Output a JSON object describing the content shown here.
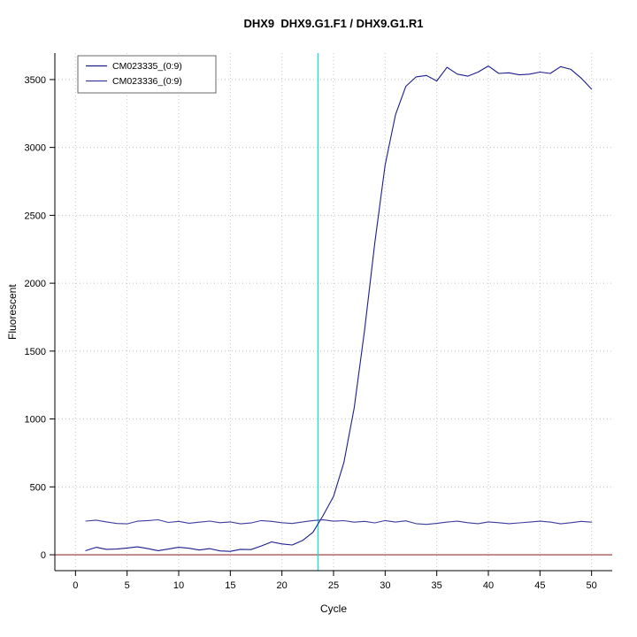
{
  "title": "DHX9  DHX9.G1.F1 / DHX9.G1.R1",
  "chart_data": {
    "type": "line",
    "title": "DHX9  DHX9.G1.F1 / DHX9.G1.R1",
    "xlabel": "Cycle",
    "ylabel": "Fluorescent",
    "xlim": [
      -2,
      52
    ],
    "ylim": [
      -117,
      3695
    ],
    "xticks": [
      0,
      5,
      10,
      15,
      20,
      25,
      30,
      35,
      40,
      45,
      50
    ],
    "yticks": [
      0,
      500,
      1000,
      1500,
      2000,
      2500,
      3000,
      3500
    ],
    "grid": "dotted",
    "grid_color": "#c4c4c4",
    "legend_position": "top-left",
    "x": [
      1,
      2,
      3,
      4,
      5,
      6,
      7,
      8,
      9,
      10,
      11,
      12,
      13,
      14,
      15,
      16,
      17,
      18,
      19,
      20,
      21,
      22,
      23,
      24,
      25,
      26,
      27,
      28,
      29,
      30,
      31,
      32,
      33,
      34,
      35,
      36,
      37,
      38,
      39,
      40,
      41,
      42,
      43,
      44,
      45,
      46,
      47,
      48,
      49,
      50
    ],
    "series": [
      {
        "name": "CM023335_(0:9)",
        "color": "#1c1c8e",
        "values": [
          30,
          55,
          40,
          42,
          50,
          58,
          45,
          30,
          42,
          55,
          48,
          35,
          45,
          28,
          25,
          40,
          38,
          65,
          95,
          80,
          72,
          105,
          165,
          290,
          430,
          680,
          1080,
          1650,
          2300,
          2870,
          3240,
          3450,
          3520,
          3530,
          3490,
          3590,
          3540,
          3525,
          3555,
          3600,
          3545,
          3550,
          3535,
          3540,
          3555,
          3545,
          3595,
          3575,
          3510,
          3430
        ]
      },
      {
        "name": "CM023336_(0:9)",
        "color": "#3c3c9c",
        "values": [
          248,
          255,
          242,
          230,
          228,
          247,
          252,
          258,
          238,
          246,
          232,
          240,
          248,
          236,
          242,
          228,
          234,
          252,
          246,
          236,
          230,
          242,
          252,
          257,
          247,
          251,
          240,
          246,
          235,
          252,
          241,
          250,
          229,
          224,
          231,
          241,
          247,
          236,
          229,
          242,
          236,
          229,
          235,
          241,
          247,
          241,
          228,
          236,
          246,
          240
        ]
      }
    ],
    "baseline_line": {
      "axis": "y",
      "value": 0,
      "color": "#993333"
    },
    "ct_line": {
      "axis": "x",
      "value": 23.5,
      "color": "#00e5e5"
    }
  }
}
